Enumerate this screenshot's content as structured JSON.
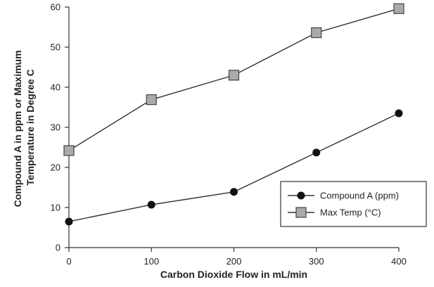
{
  "chart_data": {
    "type": "line",
    "title": "",
    "xlabel": "Carbon Dioxide Flow in mL/min",
    "ylabel_line1": "Compound A in ppm or Maximum",
    "ylabel_line2": "Temperature in Degree C",
    "x": [
      0,
      100,
      200,
      300,
      400
    ],
    "xlim": [
      0,
      400
    ],
    "ylim": [
      0,
      60
    ],
    "x_ticks": [
      "0",
      "100",
      "200",
      "300",
      "400"
    ],
    "y_ticks": [
      "0",
      "10",
      "20",
      "30",
      "40",
      "50",
      "60"
    ],
    "grid": false,
    "legend_position": "bottom-right",
    "series": [
      {
        "name": "Compound A (ppm)",
        "marker": "circle",
        "color": "#111111",
        "values": [
          6.5,
          10.7,
          13.9,
          23.7,
          33.5
        ]
      },
      {
        "name": "Max Temp (°C)",
        "marker": "square",
        "color": "#aaaaaa",
        "values": [
          24.2,
          36.9,
          43.0,
          53.6,
          59.6
        ]
      }
    ]
  }
}
